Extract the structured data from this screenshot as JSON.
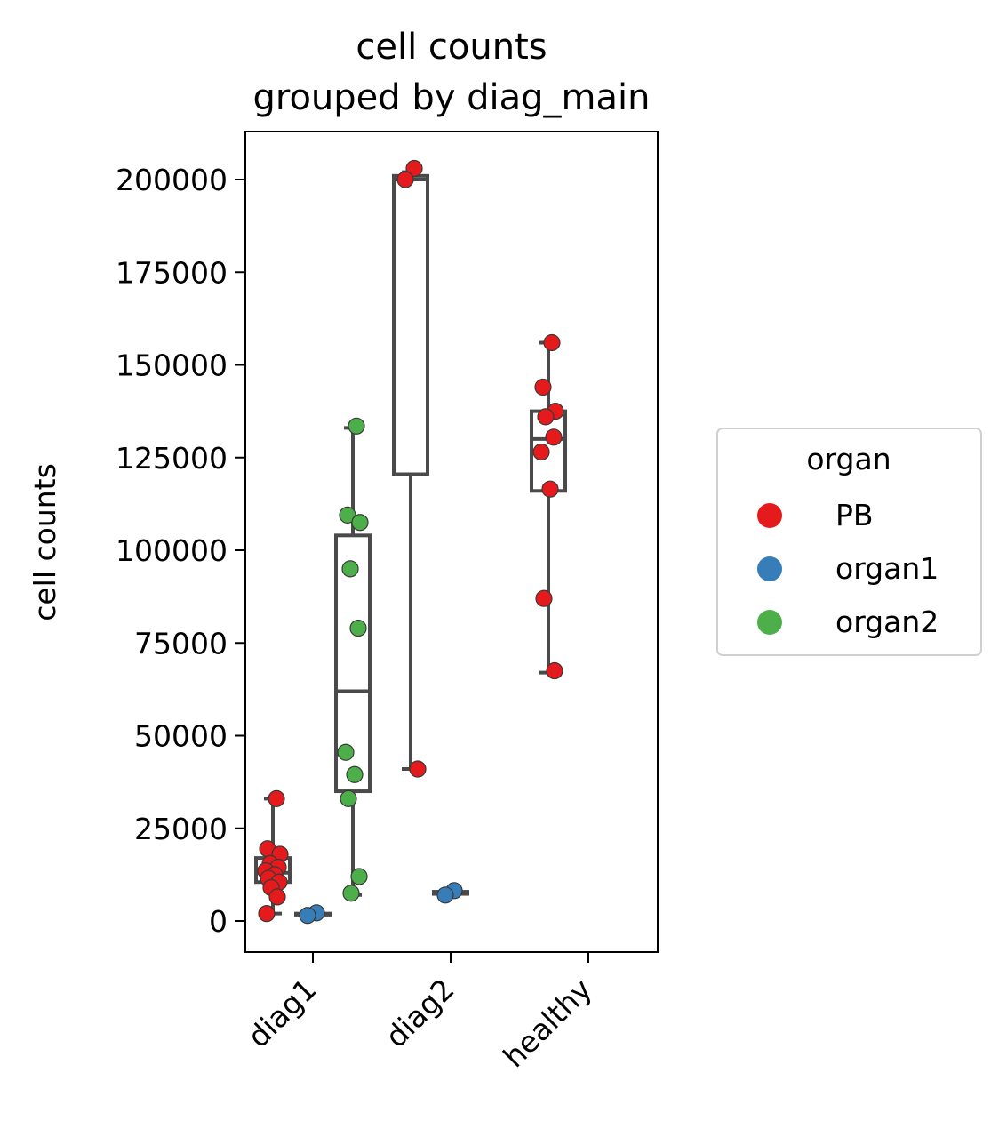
{
  "chart_data": {
    "type": "box",
    "title": [
      "cell counts",
      "grouped by diag_main"
    ],
    "xlabel": "",
    "ylabel": "cell counts",
    "categories": [
      "diag1",
      "diag2",
      "healthy"
    ],
    "ylim": [
      -8000,
      213000
    ],
    "yticks": [
      0,
      25000,
      50000,
      75000,
      100000,
      125000,
      150000,
      175000,
      200000
    ],
    "ytick_labels": [
      "0",
      "25000",
      "50000",
      "75000",
      "100000",
      "125000",
      "150000",
      "175000",
      "200000"
    ],
    "grid": false,
    "legend": {
      "title": "organ",
      "placement": "right",
      "entries": [
        {
          "label": "PB",
          "color": "#e41a1c"
        },
        {
          "label": "organ1",
          "color": "#377eb8"
        },
        {
          "label": "organ2",
          "color": "#4daf4a"
        }
      ]
    },
    "hue_order": [
      "PB",
      "organ1",
      "organ2"
    ],
    "groups": [
      {
        "category": "diag1",
        "boxes": [
          {
            "organ": "PB",
            "whislo": 2000,
            "q1": 10500,
            "median": 13000,
            "q3": 17000,
            "whishi": 33000,
            "points": [
              33000,
              19500,
              18000,
              15500,
              14500,
              13500,
              12500,
              11500,
              10500,
              9000,
              6500,
              2000
            ]
          },
          {
            "organ": "organ1",
            "whislo": 1500,
            "q1": 1700,
            "median": 1900,
            "q3": 2000,
            "whishi": 2200,
            "points": [
              2200,
              1500
            ]
          },
          {
            "organ": "organ2",
            "whislo": 7000,
            "q1": 35000,
            "median": 62000,
            "q3": 104000,
            "whishi": 133000,
            "points": [
              133500,
              109500,
              107500,
              95000,
              79000,
              45500,
              39500,
              33000,
              12000,
              7500
            ]
          }
        ]
      },
      {
        "category": "diag2",
        "boxes": [
          {
            "organ": "PB",
            "whislo": 41000,
            "q1": 120500,
            "median": 200000,
            "q3": 201000,
            "whishi": 202000,
            "points": [
              203000,
              200000,
              41000
            ]
          },
          {
            "organ": "organ1",
            "whislo": 7000,
            "q1": 7300,
            "median": 7600,
            "q3": 7900,
            "whishi": 8200,
            "points": [
              8200,
              7000
            ]
          }
        ]
      },
      {
        "category": "healthy",
        "boxes": [
          {
            "organ": "PB",
            "whislo": 67000,
            "q1": 116000,
            "median": 130000,
            "q3": 137500,
            "whishi": 156000,
            "points": [
              156000,
              144000,
              137500,
              136000,
              130500,
              126500,
              116500,
              87000,
              67500
            ]
          }
        ]
      }
    ]
  }
}
